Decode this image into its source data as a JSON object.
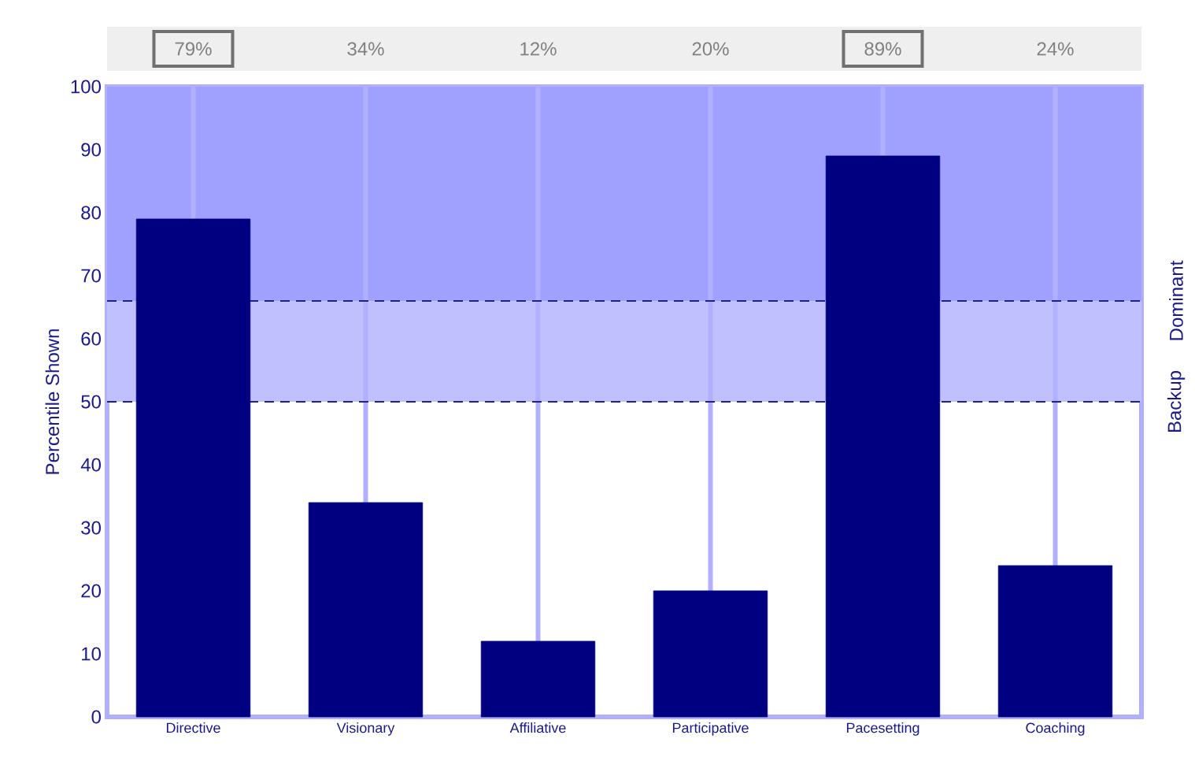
{
  "chart_data": {
    "type": "bar",
    "ylabel": "Percentile Shown",
    "categories": [
      "Directive",
      "Visionary",
      "Affiliative",
      "Participative",
      "Pacesetting",
      "Coaching"
    ],
    "values": [
      79,
      34,
      12,
      20,
      89,
      24
    ],
    "value_labels": [
      "79%",
      "34%",
      "12%",
      "20%",
      "89%",
      "24%"
    ],
    "color": "#000080",
    "ylim": [
      0,
      100
    ],
    "yticks": [
      0,
      10,
      20,
      30,
      40,
      50,
      60,
      70,
      80,
      90,
      100
    ],
    "grid": "x",
    "bands": [
      {
        "axis": "y",
        "from": 66,
        "to": 100,
        "label": "Dominant",
        "color": "#a0a0ff"
      },
      {
        "axis": "y",
        "from": 50,
        "to": 66,
        "label": "Backup",
        "color": "#c0c0ff"
      }
    ],
    "ref_lines": [
      {
        "axis": "y",
        "value": 66,
        "color": "#202090",
        "line_style": "dashed"
      },
      {
        "axis": "y",
        "value": 50,
        "color": "#202090",
        "line_style": "dashed"
      }
    ]
  }
}
